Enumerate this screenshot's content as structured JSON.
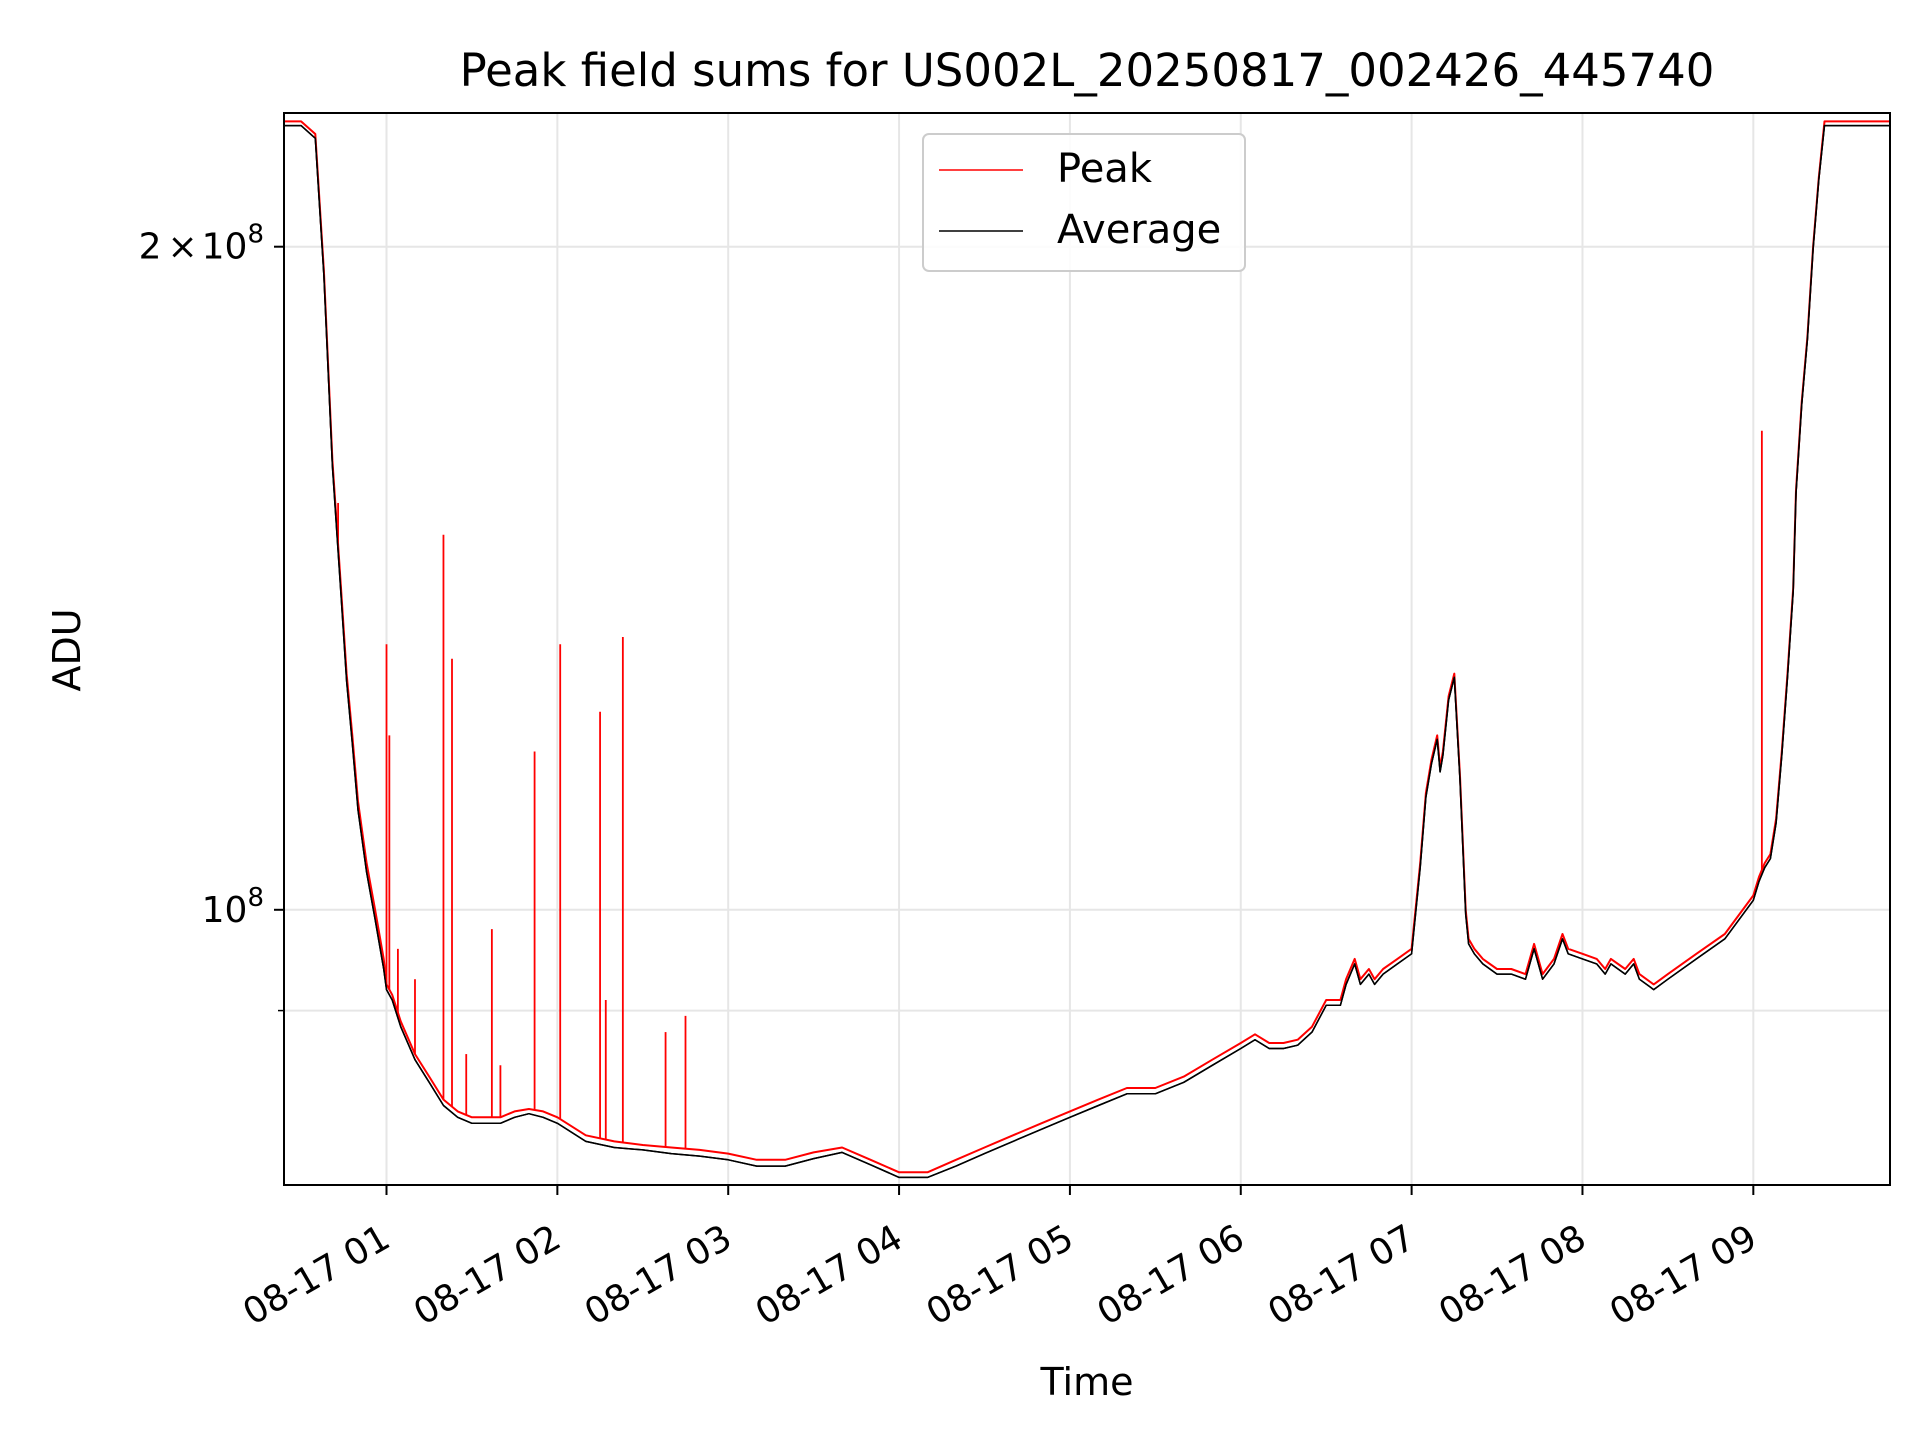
{
  "chart_data": {
    "type": "line",
    "title": "Peak field sums for US002L_20250817_002426_445740",
    "xlabel": "Time",
    "ylabel": "ADU",
    "y_scale": "log",
    "grid": true,
    "legend_position": "top-center",
    "xlim": [
      "2025-08-17 00:24",
      "2025-08-17 09:48"
    ],
    "ylim": [
      75000000,
      230000000
    ],
    "x_ticks": [
      {
        "label": "08-17 01",
        "time": "2025-08-17 01:00"
      },
      {
        "label": "08-17 02",
        "time": "2025-08-17 02:00"
      },
      {
        "label": "08-17 03",
        "time": "2025-08-17 03:00"
      },
      {
        "label": "08-17 04",
        "time": "2025-08-17 04:00"
      },
      {
        "label": "08-17 05",
        "time": "2025-08-17 05:00"
      },
      {
        "label": "08-17 06",
        "time": "2025-08-17 06:00"
      },
      {
        "label": "08-17 07",
        "time": "2025-08-17 07:00"
      },
      {
        "label": "08-17 08",
        "time": "2025-08-17 08:00"
      },
      {
        "label": "08-17 09",
        "time": "2025-08-17 09:00"
      }
    ],
    "y_major_ticks": [
      {
        "value": 100000000,
        "base": "10",
        "exp": "8",
        "coef": ""
      },
      {
        "value": 200000000,
        "base": "10",
        "exp": "8",
        "coef": "2"
      }
    ],
    "y_minor_ticks": [
      90000000
    ],
    "series": [
      {
        "name": "Peak",
        "color": "#ff0000",
        "x": [
          "2025-08-17 00:24",
          "2025-08-17 00:30",
          "2025-08-17 00:35",
          "2025-08-17 00:38",
          "2025-08-17 00:41",
          "2025-08-17 00:44",
          "2025-08-17 00:46",
          "2025-08-17 00:48",
          "2025-08-17 00:50",
          "2025-08-17 00:53",
          "2025-08-17 00:56",
          "2025-08-17 00:59",
          "2025-08-17 01:00",
          "2025-08-17 01:02",
          "2025-08-17 01:05",
          "2025-08-17 01:10",
          "2025-08-17 01:15",
          "2025-08-17 01:20",
          "2025-08-17 01:25",
          "2025-08-17 01:30",
          "2025-08-17 01:40",
          "2025-08-17 01:45",
          "2025-08-17 01:50",
          "2025-08-17 01:55",
          "2025-08-17 02:00",
          "2025-08-17 02:10",
          "2025-08-17 02:20",
          "2025-08-17 02:30",
          "2025-08-17 02:40",
          "2025-08-17 02:50",
          "2025-08-17 03:00",
          "2025-08-17 03:10",
          "2025-08-17 03:20",
          "2025-08-17 03:30",
          "2025-08-17 03:40",
          "2025-08-17 03:50",
          "2025-08-17 04:00",
          "2025-08-17 04:10",
          "2025-08-17 04:20",
          "2025-08-17 04:30",
          "2025-08-17 04:40",
          "2025-08-17 04:50",
          "2025-08-17 05:00",
          "2025-08-17 05:10",
          "2025-08-17 05:20",
          "2025-08-17 05:30",
          "2025-08-17 05:40",
          "2025-08-17 05:50",
          "2025-08-17 06:00",
          "2025-08-17 06:05",
          "2025-08-17 06:10",
          "2025-08-17 06:15",
          "2025-08-17 06:20",
          "2025-08-17 06:25",
          "2025-08-17 06:30",
          "2025-08-17 06:35",
          "2025-08-17 06:37",
          "2025-08-17 06:40",
          "2025-08-17 06:42",
          "2025-08-17 06:45",
          "2025-08-17 06:47",
          "2025-08-17 06:50",
          "2025-08-17 06:55",
          "2025-08-17 07:00",
          "2025-08-17 07:03",
          "2025-08-17 07:05",
          "2025-08-17 07:07",
          "2025-08-17 07:09",
          "2025-08-17 07:10",
          "2025-08-17 07:11",
          "2025-08-17 07:13",
          "2025-08-17 07:15",
          "2025-08-17 07:17",
          "2025-08-17 07:19",
          "2025-08-17 07:20",
          "2025-08-17 07:22",
          "2025-08-17 07:25",
          "2025-08-17 07:30",
          "2025-08-17 07:35",
          "2025-08-17 07:40",
          "2025-08-17 07:43",
          "2025-08-17 07:46",
          "2025-08-17 07:50",
          "2025-08-17 07:53",
          "2025-08-17 07:55",
          "2025-08-17 08:00",
          "2025-08-17 08:05",
          "2025-08-17 08:08",
          "2025-08-17 08:10",
          "2025-08-17 08:15",
          "2025-08-17 08:18",
          "2025-08-17 08:20",
          "2025-08-17 08:25",
          "2025-08-17 08:30",
          "2025-08-17 08:40",
          "2025-08-17 08:50",
          "2025-08-17 09:00",
          "2025-08-17 09:02",
          "2025-08-17 09:04",
          "2025-08-17 09:06",
          "2025-08-17 09:08",
          "2025-08-17 09:10",
          "2025-08-17 09:12",
          "2025-08-17 09:14",
          "2025-08-17 09:15",
          "2025-08-17 09:17",
          "2025-08-17 09:19",
          "2025-08-17 09:21",
          "2025-08-17 09:23",
          "2025-08-17 09:25",
          "2025-08-17 09:30",
          "2025-08-17 09:48"
        ],
        "values": [
          228000000,
          228000000,
          225000000,
          195000000,
          160000000,
          140000000,
          128000000,
          120000000,
          112000000,
          105000000,
          100000000,
          95000000,
          92500000,
          91500000,
          89000000,
          86000000,
          84000000,
          82000000,
          81000000,
          80500000,
          80500000,
          81000000,
          81200000,
          81000000,
          80500000,
          79000000,
          78500000,
          78200000,
          78000000,
          77800000,
          77500000,
          77000000,
          77000000,
          77600000,
          78000000,
          77000000,
          76000000,
          76000000,
          77000000,
          78000000,
          79000000,
          80000000,
          81000000,
          82000000,
          83000000,
          83000000,
          84000000,
          85500000,
          87000000,
          87800000,
          87000000,
          87000000,
          87300000,
          88500000,
          91000000,
          91000000,
          93000000,
          95000000,
          93000000,
          94000000,
          93000000,
          94000000,
          95000000,
          96000000,
          105000000,
          113000000,
          117000000,
          120000000,
          116000000,
          118000000,
          125000000,
          128000000,
          115000000,
          100000000,
          97000000,
          96000000,
          95000000,
          94000000,
          94000000,
          93500000,
          96500000,
          93500000,
          95000000,
          97500000,
          96000000,
          95500000,
          95000000,
          94000000,
          95000000,
          94000000,
          95000000,
          93500000,
          92500000,
          93500000,
          95500000,
          97500000,
          101500000,
          103500000,
          105000000,
          106000000,
          110000000,
          118000000,
          128000000,
          140000000,
          155000000,
          170000000,
          182000000,
          200000000,
          215000000,
          228000000,
          228000000,
          228000000
        ],
        "spikes": [
          {
            "time": "2025-08-17 00:43",
            "value": 153000000
          },
          {
            "time": "2025-08-17 01:00",
            "value": 132000000
          },
          {
            "time": "2025-08-17 01:01",
            "value": 120000000
          },
          {
            "time": "2025-08-17 01:04",
            "value": 96000000
          },
          {
            "time": "2025-08-17 01:10",
            "value": 93000000
          },
          {
            "time": "2025-08-17 01:20",
            "value": 148000000
          },
          {
            "time": "2025-08-17 01:23",
            "value": 130000000
          },
          {
            "time": "2025-08-17 01:28",
            "value": 86000000
          },
          {
            "time": "2025-08-17 01:37",
            "value": 98000000
          },
          {
            "time": "2025-08-17 01:40",
            "value": 85000000
          },
          {
            "time": "2025-08-17 01:52",
            "value": 118000000
          },
          {
            "time": "2025-08-17 02:01",
            "value": 132000000
          },
          {
            "time": "2025-08-17 02:15",
            "value": 123000000
          },
          {
            "time": "2025-08-17 02:17",
            "value": 91000000
          },
          {
            "time": "2025-08-17 02:23",
            "value": 133000000
          },
          {
            "time": "2025-08-17 02:38",
            "value": 88000000
          },
          {
            "time": "2025-08-17 02:45",
            "value": 89500000
          },
          {
            "time": "2025-08-17 09:03",
            "value": 165000000
          }
        ]
      },
      {
        "name": "Average",
        "color": "#000000",
        "x": [
          "2025-08-17 00:24",
          "2025-08-17 00:30",
          "2025-08-17 00:35",
          "2025-08-17 00:38",
          "2025-08-17 00:41",
          "2025-08-17 00:44",
          "2025-08-17 00:46",
          "2025-08-17 00:48",
          "2025-08-17 00:50",
          "2025-08-17 00:53",
          "2025-08-17 00:56",
          "2025-08-17 00:59",
          "2025-08-17 01:00",
          "2025-08-17 01:02",
          "2025-08-17 01:05",
          "2025-08-17 01:10",
          "2025-08-17 01:15",
          "2025-08-17 01:20",
          "2025-08-17 01:25",
          "2025-08-17 01:30",
          "2025-08-17 01:40",
          "2025-08-17 01:45",
          "2025-08-17 01:50",
          "2025-08-17 01:55",
          "2025-08-17 02:00",
          "2025-08-17 02:10",
          "2025-08-17 02:20",
          "2025-08-17 02:30",
          "2025-08-17 02:40",
          "2025-08-17 02:50",
          "2025-08-17 03:00",
          "2025-08-17 03:10",
          "2025-08-17 03:20",
          "2025-08-17 03:30",
          "2025-08-17 03:40",
          "2025-08-17 03:50",
          "2025-08-17 04:00",
          "2025-08-17 04:10",
          "2025-08-17 04:20",
          "2025-08-17 04:30",
          "2025-08-17 04:40",
          "2025-08-17 04:50",
          "2025-08-17 05:00",
          "2025-08-17 05:10",
          "2025-08-17 05:20",
          "2025-08-17 05:30",
          "2025-08-17 05:40",
          "2025-08-17 05:50",
          "2025-08-17 06:00",
          "2025-08-17 06:05",
          "2025-08-17 06:10",
          "2025-08-17 06:15",
          "2025-08-17 06:20",
          "2025-08-17 06:25",
          "2025-08-17 06:30",
          "2025-08-17 06:35",
          "2025-08-17 06:37",
          "2025-08-17 06:40",
          "2025-08-17 06:42",
          "2025-08-17 06:45",
          "2025-08-17 06:47",
          "2025-08-17 06:50",
          "2025-08-17 06:55",
          "2025-08-17 07:00",
          "2025-08-17 07:03",
          "2025-08-17 07:05",
          "2025-08-17 07:07",
          "2025-08-17 07:09",
          "2025-08-17 07:10",
          "2025-08-17 07:11",
          "2025-08-17 07:13",
          "2025-08-17 07:15",
          "2025-08-17 07:17",
          "2025-08-17 07:19",
          "2025-08-17 07:20",
          "2025-08-17 07:22",
          "2025-08-17 07:25",
          "2025-08-17 07:30",
          "2025-08-17 07:35",
          "2025-08-17 07:40",
          "2025-08-17 07:43",
          "2025-08-17 07:46",
          "2025-08-17 07:50",
          "2025-08-17 07:53",
          "2025-08-17 07:55",
          "2025-08-17 08:00",
          "2025-08-17 08:05",
          "2025-08-17 08:08",
          "2025-08-17 08:10",
          "2025-08-17 08:15",
          "2025-08-17 08:18",
          "2025-08-17 08:20",
          "2025-08-17 08:25",
          "2025-08-17 08:30",
          "2025-08-17 08:40",
          "2025-08-17 08:50",
          "2025-08-17 09:00",
          "2025-08-17 09:02",
          "2025-08-17 09:04",
          "2025-08-17 09:06",
          "2025-08-17 09:08",
          "2025-08-17 09:10",
          "2025-08-17 09:12",
          "2025-08-17 09:14",
          "2025-08-17 09:15",
          "2025-08-17 09:17",
          "2025-08-17 09:19",
          "2025-08-17 09:21",
          "2025-08-17 09:23",
          "2025-08-17 09:25",
          "2025-08-17 09:30",
          "2025-08-17 09:48"
        ],
        "values": [
          227000000,
          227000000,
          224000000,
          194000000,
          159000000,
          139000000,
          127000000,
          119000000,
          111000000,
          104000000,
          99000000,
          94000000,
          92000000,
          91000000,
          88500000,
          85500000,
          83500000,
          81500000,
          80500000,
          80000000,
          80000000,
          80500000,
          80800000,
          80500000,
          80000000,
          78500000,
          78000000,
          77800000,
          77500000,
          77300000,
          77000000,
          76500000,
          76500000,
          77100000,
          77600000,
          76600000,
          75600000,
          75600000,
          76500000,
          77500000,
          78500000,
          79500000,
          80500000,
          81500000,
          82500000,
          82500000,
          83500000,
          85000000,
          86500000,
          87300000,
          86500000,
          86500000,
          86800000,
          88000000,
          90500000,
          90500000,
          92500000,
          94500000,
          92500000,
          93500000,
          92500000,
          93500000,
          94500000,
          95500000,
          104500000,
          112500000,
          116500000,
          119500000,
          115500000,
          117500000,
          124500000,
          127500000,
          114500000,
          99500000,
          96500000,
          95500000,
          94500000,
          93500000,
          93500000,
          93000000,
          96000000,
          93000000,
          94500000,
          97000000,
          95500000,
          95000000,
          94500000,
          93500000,
          94500000,
          93500000,
          94500000,
          93000000,
          92000000,
          93000000,
          95000000,
          97000000,
          101000000,
          103000000,
          104500000,
          105500000,
          109500000,
          117500000,
          127500000,
          139500000,
          154500000,
          169500000,
          181500000,
          199500000,
          214500000,
          227000000,
          227000000,
          227000000
        ]
      }
    ]
  }
}
